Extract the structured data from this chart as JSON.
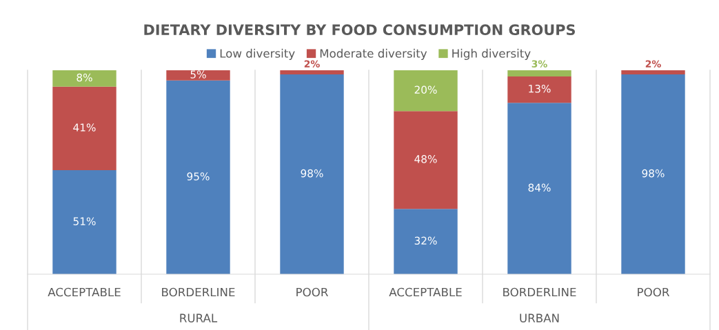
{
  "chart_data": {
    "type": "bar",
    "title": "DIETARY DIVERSITY BY FOOD CONSUMPTION GROUPS",
    "categories": [
      "ACCEPTABLE",
      "BORDERLINE",
      "POOR",
      "ACCEPTABLE",
      "BORDERLINE",
      "POOR"
    ],
    "annotations": [
      "RURAL",
      "URBAN"
    ],
    "stacked": true,
    "tick_labels": "x",
    "legend": "top",
    "series": [
      {
        "name": "Low diversity",
        "color": "#4f81bd",
        "values": [
          51,
          95,
          98,
          32,
          84,
          98
        ],
        "value_labels": [
          "51%",
          "95%",
          "98%",
          "32%",
          "84%",
          "98%"
        ]
      },
      {
        "name": "Moderate diversity",
        "color": "#c0504d",
        "values": [
          41,
          5,
          2,
          48,
          13,
          2
        ],
        "value_labels": [
          "41%",
          "5%",
          "2%",
          "48%",
          "13%",
          "2%"
        ]
      },
      {
        "name": "High diversity",
        "color": "#9bbb59",
        "values": [
          8,
          null,
          null,
          20,
          3,
          null
        ],
        "value_labels": [
          "8%",
          null,
          null,
          "20%",
          "3%",
          null
        ]
      }
    ]
  }
}
